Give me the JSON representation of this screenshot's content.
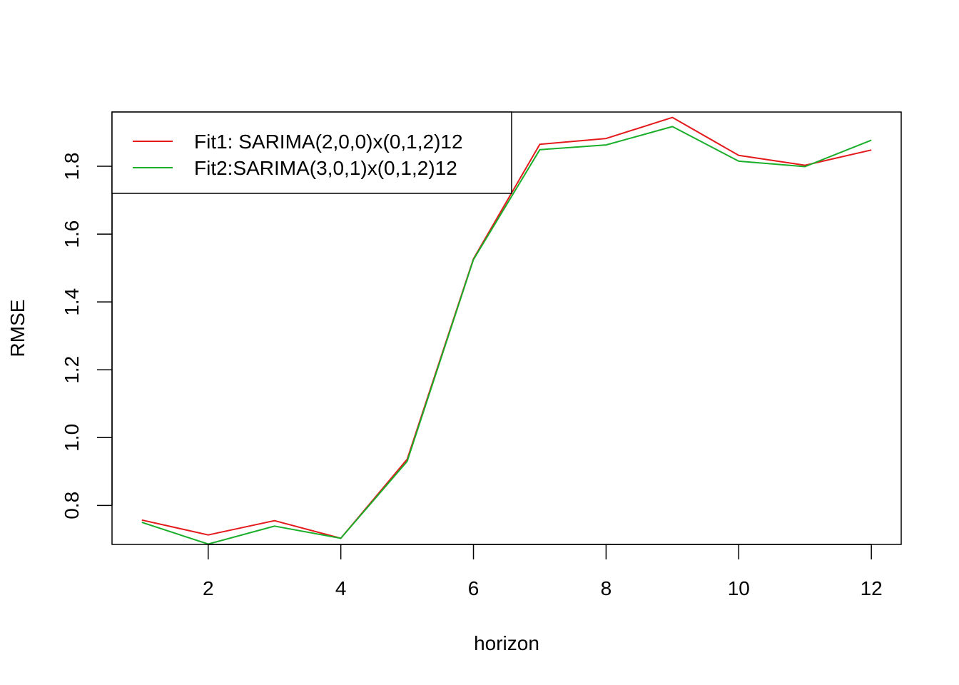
{
  "chart_data": {
    "type": "line",
    "title": "",
    "xlabel": "horizon",
    "ylabel": "RMSE",
    "xlim": [
      0.55,
      12.45
    ],
    "ylim": [
      0.685,
      1.96
    ],
    "x_ticks": [
      2,
      4,
      6,
      8,
      10,
      12
    ],
    "x_tick_labels": [
      "2",
      "4",
      "6",
      "8",
      "10",
      "12"
    ],
    "y_ticks": [
      0.8,
      1.0,
      1.2,
      1.4,
      1.6,
      1.8
    ],
    "y_tick_labels": [
      "0.8",
      "1.0",
      "1.2",
      "1.4",
      "1.6",
      "1.8"
    ],
    "grid": false,
    "legend_position": "top-left",
    "x": [
      1,
      2,
      3,
      4,
      5,
      6,
      7,
      8,
      9,
      10,
      11,
      12
    ],
    "series": [
      {
        "name": "Fit1: SARIMA(2,0,0)x(0,1,2)12",
        "color": "#e41a1c",
        "values": [
          0.757,
          0.713,
          0.755,
          0.703,
          0.936,
          1.527,
          1.865,
          1.882,
          1.944,
          1.832,
          1.803,
          1.848
        ]
      },
      {
        "name": "Fit2:SARIMA(3,0,1)x(0,1,2)12",
        "color": "#1aae2a",
        "values": [
          0.75,
          0.686,
          0.739,
          0.703,
          0.93,
          1.525,
          1.849,
          1.863,
          1.917,
          1.815,
          1.799,
          1.877
        ]
      }
    ]
  }
}
